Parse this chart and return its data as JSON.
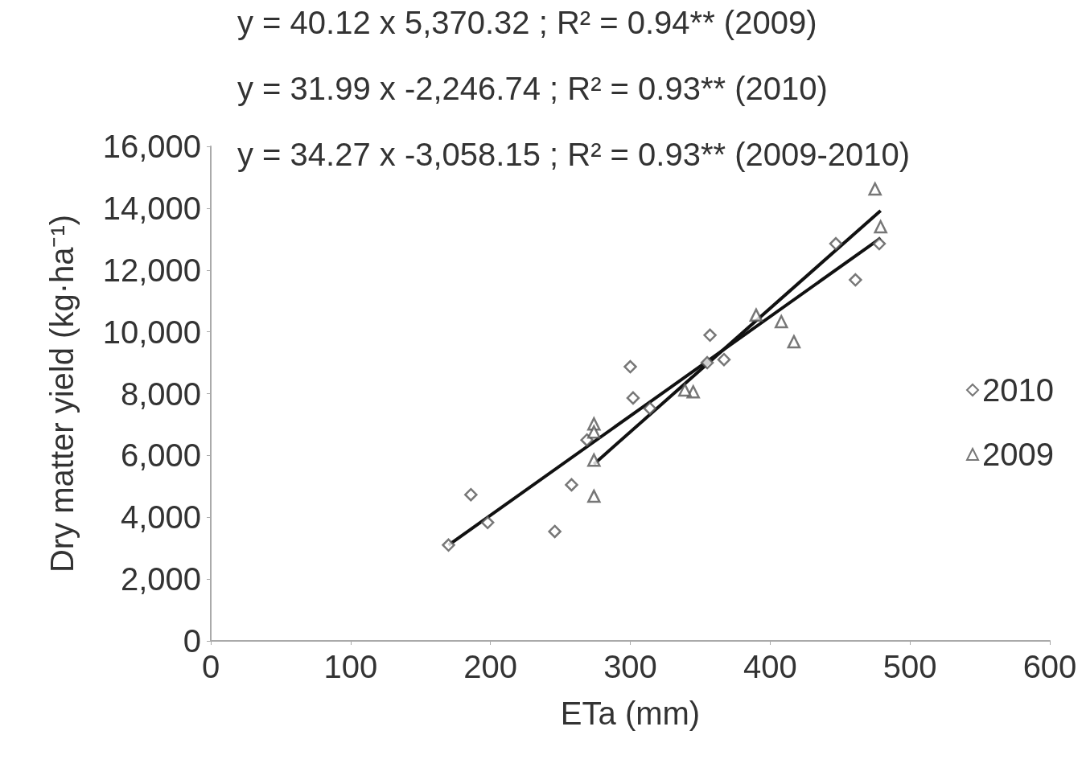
{
  "chart_data": {
    "type": "scatter",
    "xlabel": "ETa (mm)",
    "ylabel": "Dry matter yield (kg·ha⁻¹)",
    "annotations": [
      "y = 40.12 x 5,370.32 ; R² = 0.94** (2009)",
      "y = 31.99 x -2,246.74 ; R² = 0.93** (2010)",
      "y = 34.27 x -3,058.15 ; R² = 0.93** (2009-2010)"
    ],
    "xlim": [
      0,
      600
    ],
    "xticks": [
      0,
      100,
      200,
      300,
      400,
      500,
      600
    ],
    "ylim": [
      0,
      16000
    ],
    "yticks": [
      {
        "value": 0,
        "label": "0"
      },
      {
        "value": 2000,
        "label": "2,000"
      },
      {
        "value": 4000,
        "label": "4,000"
      },
      {
        "value": 6000,
        "label": "6,000"
      },
      {
        "value": 8000,
        "label": "8,000"
      },
      {
        "value": 10000,
        "label": "10,000"
      },
      {
        "value": 12000,
        "label": "12,000"
      },
      {
        "value": 14000,
        "label": "14,000"
      },
      {
        "value": 16000,
        "label": "16,000"
      }
    ],
    "grid": false,
    "legend": "right",
    "series": [
      {
        "name": "2010",
        "type": "scatter",
        "marker": "diamond",
        "color": "#555555",
        "x": [
          300,
          302,
          269,
          314,
          186,
          198,
          170,
          258,
          246,
          478,
          447,
          461,
          357,
          367,
          355
        ],
        "values": [
          8870,
          7860,
          6500,
          7520,
          4730,
          3830,
          3100,
          5050,
          3540,
          12850,
          12850,
          11680,
          9890,
          9100,
          9000
        ]
      },
      {
        "name": "2009",
        "type": "scatter",
        "marker": "triangle",
        "color": "#555555",
        "x": [
          274,
          274,
          274,
          274,
          475,
          479,
          390,
          408,
          417,
          345,
          339
        ],
        "values": [
          7020,
          6760,
          5850,
          4680,
          14620,
          13400,
          10540,
          10330,
          9680,
          8060,
          8120
        ]
      },
      {
        "type": "line",
        "marker": "none",
        "color": "#111111",
        "x": [
          274,
          479
        ],
        "values": [
          5720,
          13920
        ]
      },
      {
        "type": "line",
        "marker": "none",
        "color": "#111111",
        "x": [
          170,
          479
        ],
        "values": [
          3100,
          13030
        ]
      }
    ]
  }
}
